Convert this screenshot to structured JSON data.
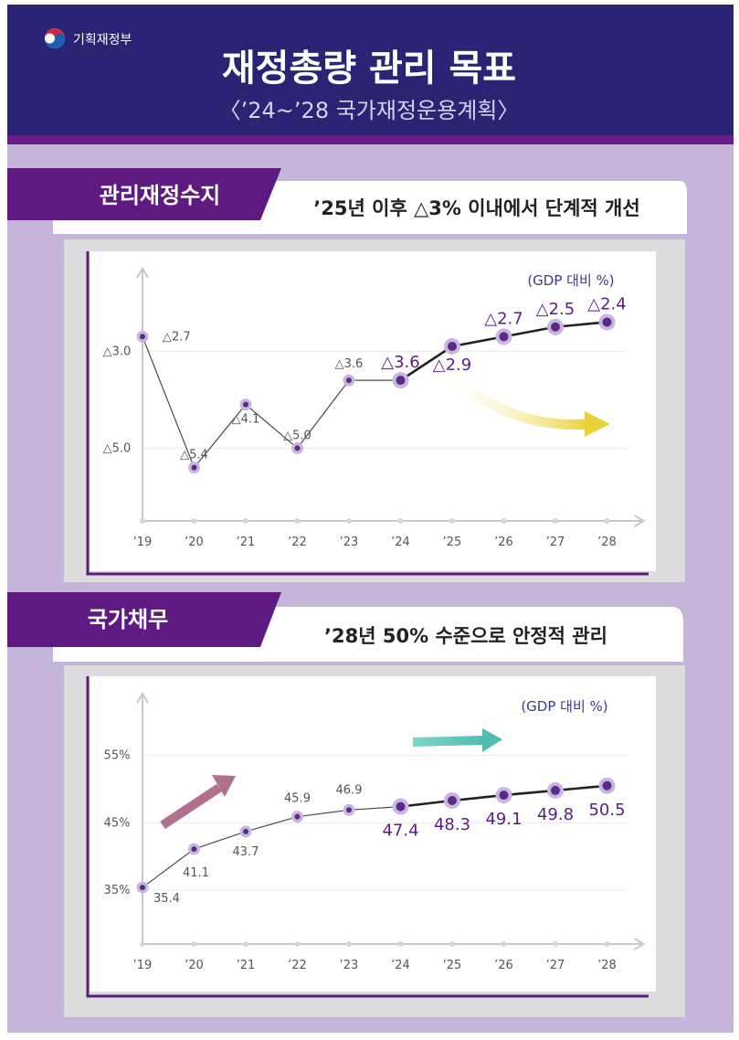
{
  "header": {
    "ministry": "기획재정부",
    "title": "재정총량 관리 목표",
    "subtitle": "〈’24~’28 국가재정운용계획〉"
  },
  "colors": {
    "navy": "#2b2475",
    "purple": "#6a1b8a",
    "lavender": "#c5b5db",
    "gray_frame": "#dcdcdc",
    "axis": "#c8c8c8",
    "point": "#5b2a86",
    "point_halo": "#c9b6e0",
    "label_gray": "#555555",
    "label_purple": "#5b1d85",
    "arrow_yellow": "#e9d33a",
    "arrow_pink": "#b0708f",
    "arrow_teal": "#5cc3b6"
  },
  "chart_data": [
    {
      "type": "line",
      "section_label": "관리재정수지",
      "subtitle": "’25년 이후 △3% 이내에서 단계적 개선",
      "unit_label": "(GDP 대비 %)",
      "categories": [
        "’19",
        "’20",
        "’21",
        "’22",
        "’23",
        "’24",
        "’25",
        "’26",
        "’27",
        "’28"
      ],
      "values": [
        -2.7,
        -5.4,
        -4.1,
        -5.0,
        -3.6,
        -3.6,
        -2.9,
        -2.7,
        -2.5,
        -2.4
      ],
      "value_labels": [
        "△2.7",
        "△5.4",
        "△4.1",
        "△5.0",
        "△3.6",
        "△3.6",
        "△2.9",
        "△2.7",
        "△2.5",
        "△2.4"
      ],
      "y_ticks": [
        {
          "value": -5.0,
          "label": "△5.0"
        },
        {
          "value": -3.0,
          "label": "△3.0"
        }
      ],
      "ylim": [
        -6.5,
        -1.6
      ],
      "plan_start_index": 5
    },
    {
      "type": "line",
      "section_label": "국가채무",
      "subtitle": "’28년 50% 수준으로 안정적 관리",
      "unit_label": "(GDP 대비 %)",
      "categories": [
        "’19",
        "’20",
        "’21",
        "’22",
        "’23",
        "’24",
        "’25",
        "’26",
        "’27",
        "’28"
      ],
      "values": [
        35.4,
        41.1,
        43.7,
        45.9,
        46.9,
        47.4,
        48.3,
        49.1,
        49.8,
        50.5
      ],
      "value_labels": [
        "35.4",
        "41.1",
        "43.7",
        "45.9",
        "46.9",
        "47.4",
        "48.3",
        "49.1",
        "49.8",
        "50.5"
      ],
      "y_ticks": [
        {
          "value": 35,
          "label": "35%"
        },
        {
          "value": 45,
          "label": "45%"
        },
        {
          "value": 55,
          "label": "55%"
        }
      ],
      "ylim": [
        27,
        62
      ],
      "plan_start_index": 5
    }
  ]
}
